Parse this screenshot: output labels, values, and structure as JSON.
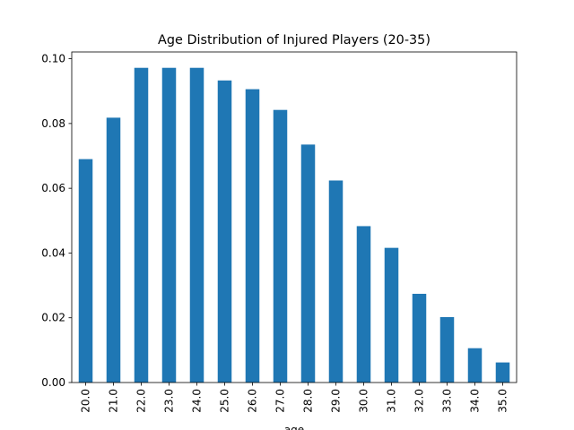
{
  "chart_data": {
    "type": "bar",
    "title": "Age Distribution of Injured Players (20-35)",
    "xlabel": "age",
    "ylabel": "",
    "categories": [
      "20.0",
      "21.0",
      "22.0",
      "23.0",
      "24.0",
      "25.0",
      "26.0",
      "27.0",
      "28.0",
      "29.0",
      "30.0",
      "31.0",
      "32.0",
      "33.0",
      "34.0",
      "35.0"
    ],
    "values": [
      0.069,
      0.0818,
      0.0972,
      0.0972,
      0.0972,
      0.0933,
      0.0906,
      0.0842,
      0.0735,
      0.0624,
      0.0483,
      0.0416,
      0.0274,
      0.0202,
      0.0106,
      0.0062
    ],
    "ylim": [
      0,
      0.1021
    ],
    "yticks": [
      "0.00",
      "0.02",
      "0.04",
      "0.06",
      "0.08",
      "0.10"
    ],
    "ytick_values": [
      0,
      0.02,
      0.04,
      0.06,
      0.08,
      0.1
    ],
    "grid": false,
    "bar_color": "#1f77b4"
  }
}
